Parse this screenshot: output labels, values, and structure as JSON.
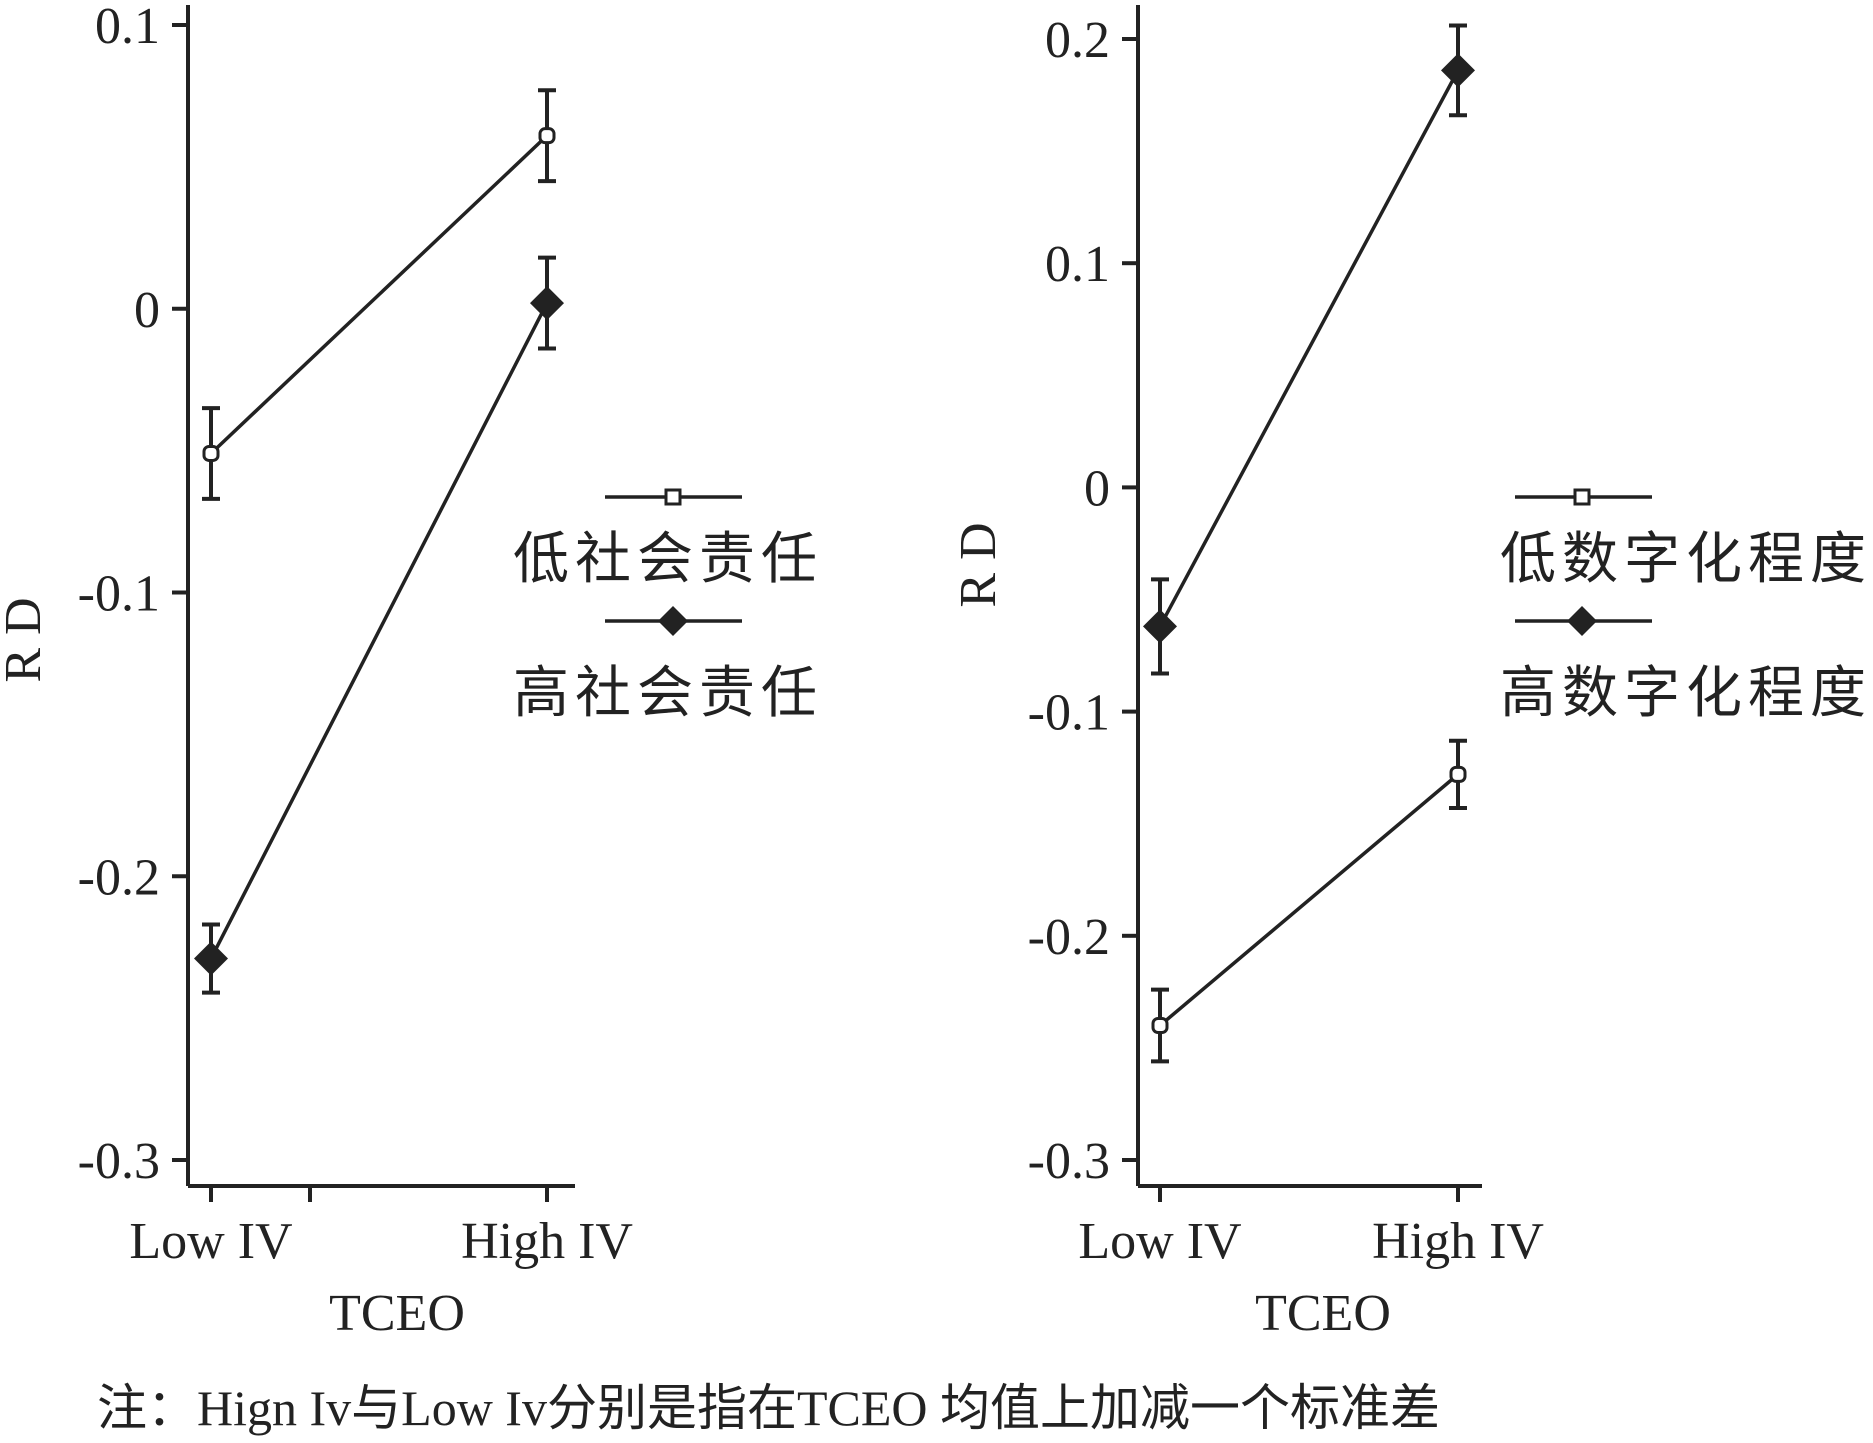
{
  "chart_data": [
    {
      "type": "line",
      "title": "",
      "xlabel": "TCEO",
      "ylabel": "RD",
      "categories": [
        "Low IV",
        "High IV"
      ],
      "ylim": [
        -0.3,
        0.1
      ],
      "yticks": [
        0.1,
        0,
        -0.1,
        -0.2,
        -0.3
      ],
      "ytick_labels": [
        "0.1",
        "0",
        "-0.1",
        "-0.2",
        "-0.3"
      ],
      "error_bars": true,
      "legend_position": "right",
      "series": [
        {
          "name": "低社会责任",
          "marker": "square-open",
          "values": [
            -0.051,
            0.061
          ],
          "errors": [
            0.016,
            0.016
          ]
        },
        {
          "name": "高社会责任",
          "marker": "diamond-filled",
          "values": [
            -0.229,
            0.002
          ],
          "errors": [
            0.012,
            0.016
          ]
        }
      ]
    },
    {
      "type": "line",
      "title": "",
      "xlabel": "TCEO",
      "ylabel": "RD",
      "categories": [
        "Low IV",
        "High IV"
      ],
      "ylim": [
        -0.3,
        0.2
      ],
      "yticks": [
        0.2,
        0.1,
        0,
        -0.1,
        -0.2,
        -0.3
      ],
      "ytick_labels": [
        "0.2",
        "0.1",
        "0",
        "-0.1",
        "-0.2",
        "-0.3"
      ],
      "error_bars": true,
      "legend_position": "right",
      "series": [
        {
          "name": "低数字化程度",
          "marker": "square-open",
          "values": [
            -0.24,
            -0.128
          ],
          "errors": [
            0.016,
            0.015
          ]
        },
        {
          "name": "高数字化程度",
          "marker": "diamond-filled",
          "values": [
            -0.062,
            0.186
          ],
          "errors": [
            0.021,
            0.02
          ]
        }
      ]
    }
  ],
  "caption": "注：Hign Iv与Low  Iv分别是指在TCEO 均值上加减一个标准差"
}
